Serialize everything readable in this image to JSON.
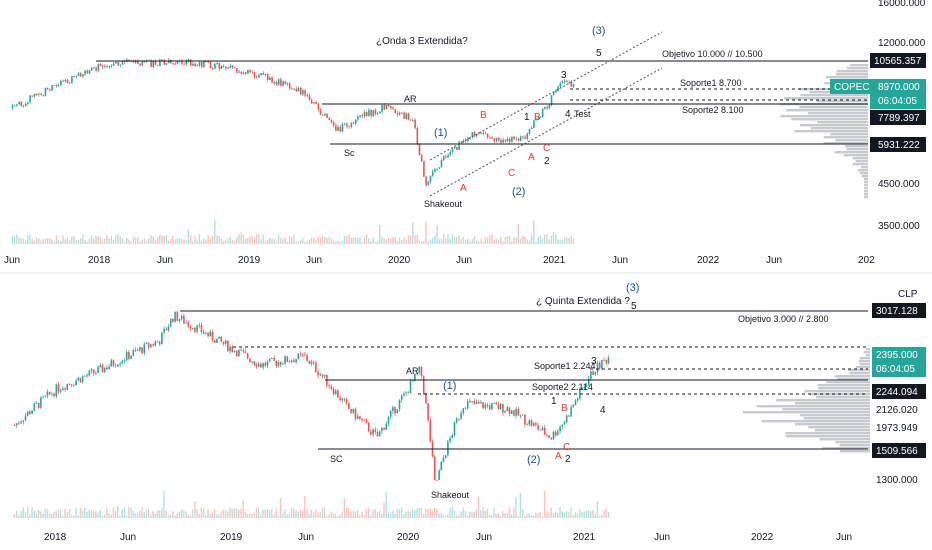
{
  "colors": {
    "up": "#26a69a",
    "down": "#ef5350",
    "wave_blue": "#1e4fa0",
    "wave_red": "#e53935",
    "label_dark": "#131722",
    "label_teal": "#26a69a",
    "profile": "#b0b3bb",
    "grid_text": "#131722"
  },
  "chart_data": [
    {
      "type": "candlestick",
      "symbol": "COPEC",
      "title": "¿Onda 3 Extendida?",
      "x_ticks": [
        "Jun",
        "2018",
        "Jun",
        "2019",
        "Jun",
        "2020",
        "Jun",
        "2021",
        "Jun",
        "2022",
        "Jun",
        "202"
      ],
      "y_ticks": [
        "16000.000",
        "12000.000",
        "4500.000",
        "3500.000"
      ],
      "y_scale": "log",
      "price_labels": {
        "resistance": "10565.357",
        "last": "8970.000",
        "countdown": "06:04:05",
        "mid": "7789.397",
        "support": "5931.222"
      },
      "levels": {
        "objective": "Objetivo 10.000 // 10.500",
        "support1": "Soporte1 8.700",
        "support2": "Soporte2 8.100"
      },
      "price_path": [
        {
          "date": "2017-06",
          "price": 7600
        },
        {
          "date": "2017-09",
          "price": 8700
        },
        {
          "date": "2017-12",
          "price": 9800
        },
        {
          "date": "2018-02",
          "price": 10500
        },
        {
          "date": "2018-05",
          "price": 10350
        },
        {
          "date": "2018-08",
          "price": 10500
        },
        {
          "date": "2018-11",
          "price": 10100
        },
        {
          "date": "2019-02",
          "price": 9500
        },
        {
          "date": "2019-05",
          "price": 8600
        },
        {
          "date": "2019-08",
          "price": 6500
        },
        {
          "date": "2019-10",
          "price": 7200
        },
        {
          "date": "2019-12",
          "price": 7700
        },
        {
          "date": "2020-02",
          "price": 7000
        },
        {
          "date": "2020-03",
          "price": 4500
        },
        {
          "date": "2020-05",
          "price": 5600
        },
        {
          "date": "2020-07",
          "price": 6400
        },
        {
          "date": "2020-09",
          "price": 6000
        },
        {
          "date": "2020-11",
          "price": 6200
        },
        {
          "date": "2021-01",
          "price": 8000
        },
        {
          "date": "2021-02",
          "price": 9200
        },
        {
          "date": "2021-03",
          "price": 8970
        }
      ],
      "annotations": {
        "sc": "Sc",
        "ar": "AR",
        "shakeout": "Shakeout",
        "test": "Test",
        "wave1": "(1)",
        "wave2": "(2)",
        "wave3": "(3)",
        "n1": "1",
        "n2": "2",
        "n3": "3",
        "n4": "4",
        "n5": "5",
        "a1": "A",
        "a2": "A",
        "b1": "B",
        "b2": "B",
        "c1": "C",
        "c2": "C"
      }
    },
    {
      "type": "candlestick",
      "symbol": "CLP",
      "title": "¿ Quinta Extendida ?",
      "x_ticks": [
        "2018",
        "Jun",
        "2019",
        "Jun",
        "2020",
        "Jun",
        "2021",
        "Jun",
        "2022",
        "Jun"
      ],
      "y_ticks": [
        "1300.000"
      ],
      "y_scale": "log",
      "price_labels": {
        "resistance": "3017.128",
        "last": "2395.000",
        "countdown": "06:04:05",
        "l1": "2244.094",
        "l2": "2126.020",
        "l3": "1973.949",
        "support": "1509.566"
      },
      "levels": {
        "objective": "Objetivo 3.000 // 2.800",
        "support1": "Soporte1 2.244",
        "support2": "Soporte2 2.114"
      },
      "price_path": [
        {
          "date": "2017-10",
          "price": 1700
        },
        {
          "date": "2018-01",
          "price": 2050
        },
        {
          "date": "2018-04",
          "price": 2250
        },
        {
          "date": "2018-08",
          "price": 2600
        },
        {
          "date": "2018-09",
          "price": 2950
        },
        {
          "date": "2018-12",
          "price": 2600
        },
        {
          "date": "2019-03",
          "price": 2300
        },
        {
          "date": "2019-06",
          "price": 2400
        },
        {
          "date": "2019-09",
          "price": 1850
        },
        {
          "date": "2019-11",
          "price": 1600
        },
        {
          "date": "2020-01",
          "price": 2000
        },
        {
          "date": "2020-02",
          "price": 2250
        },
        {
          "date": "2020-03",
          "price": 1250
        },
        {
          "date": "2020-05",
          "price": 1900
        },
        {
          "date": "2020-08",
          "price": 1850
        },
        {
          "date": "2020-11",
          "price": 1600
        },
        {
          "date": "2020-12",
          "price": 1750
        },
        {
          "date": "2021-02",
          "price": 2250
        },
        {
          "date": "2021-03",
          "price": 2395
        }
      ],
      "annotations": {
        "sc": "SC",
        "ar": "AR",
        "shakeout": "Shakeout",
        "wave1": "(1)",
        "wave2": "(2)",
        "wave3": "(3)",
        "n1": "1",
        "n2": "2",
        "n3": "3",
        "n4": "4",
        "n5": "5",
        "a1": "A",
        "b1": "B",
        "c1": "C"
      }
    }
  ]
}
